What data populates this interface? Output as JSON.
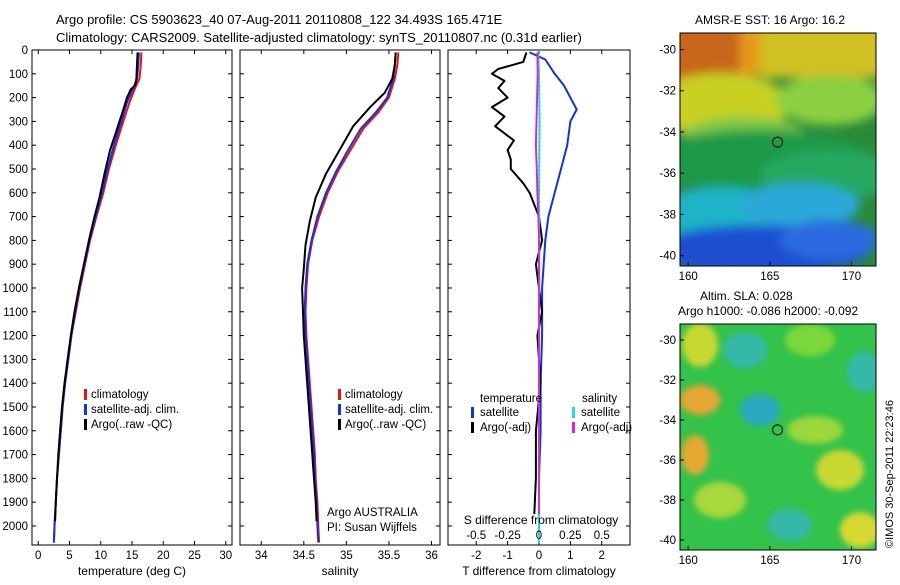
{
  "header": {
    "line1": "Argo profile: CS 5903623_40 07-Aug-2011 20110808_122 34.493S 165.471E",
    "line2": "Climatology: CARS2009. Satellite-adjusted climatology: synTS_20110807.nc (0.31d earlier)"
  },
  "colors": {
    "climatology": "#ee1111",
    "satellite": "#1133dd",
    "argo": "#000000",
    "sal_satellite": "#22dddd",
    "sal_argo": "#dd22dd"
  },
  "chart_data": [
    {
      "id": "temperature",
      "type": "line",
      "xlabel": "temperature (deg C)",
      "ylabel": "",
      "xlim": [
        -1,
        31
      ],
      "ylim": [
        2080,
        0
      ],
      "xticks": [
        0,
        5,
        10,
        15,
        20,
        25,
        30
      ],
      "yticks": [
        0,
        100,
        200,
        300,
        400,
        500,
        600,
        700,
        800,
        900,
        1000,
        1100,
        1200,
        1300,
        1400,
        1500,
        1600,
        1700,
        1800,
        1900,
        2000
      ],
      "legend": [
        "climatology",
        "satellite-adj. clim.",
        "Argo(..raw -QC)"
      ],
      "series": [
        {
          "name": "climatology",
          "color": "#ee1111",
          "points": [
            [
              16.5,
              10
            ],
            [
              16.4,
              60
            ],
            [
              16.2,
              120
            ],
            [
              15.5,
              160
            ],
            [
              14.6,
              220
            ],
            [
              13.6,
              300
            ],
            [
              12.4,
              400
            ],
            [
              11.3,
              500
            ],
            [
              10.4,
              600
            ],
            [
              9.3,
              700
            ],
            [
              8.3,
              800
            ],
            [
              7.5,
              900
            ],
            [
              6.7,
              1000
            ],
            [
              6.0,
              1100
            ],
            [
              5.3,
              1200
            ],
            [
              4.8,
              1300
            ],
            [
              4.3,
              1400
            ],
            [
              3.9,
              1500
            ],
            [
              3.6,
              1600
            ],
            [
              3.3,
              1700
            ],
            [
              3.0,
              1800
            ],
            [
              2.8,
              1900
            ],
            [
              2.6,
              2000
            ],
            [
              2.5,
              2070
            ]
          ]
        },
        {
          "name": "satellite-adj. clim.",
          "color": "#1133dd",
          "points": [
            [
              16.1,
              10
            ],
            [
              16.0,
              60
            ],
            [
              15.8,
              120
            ],
            [
              15.2,
              160
            ],
            [
              14.2,
              220
            ],
            [
              13.3,
              300
            ],
            [
              12.1,
              400
            ],
            [
              11.1,
              500
            ],
            [
              10.2,
              600
            ],
            [
              9.2,
              700
            ],
            [
              8.2,
              800
            ],
            [
              7.4,
              900
            ],
            [
              6.6,
              1000
            ],
            [
              5.9,
              1100
            ],
            [
              5.3,
              1200
            ],
            [
              4.8,
              1300
            ],
            [
              4.3,
              1400
            ],
            [
              3.9,
              1500
            ],
            [
              3.6,
              1600
            ],
            [
              3.3,
              1700
            ],
            [
              3.0,
              1800
            ],
            [
              2.8,
              1900
            ],
            [
              2.6,
              2000
            ],
            [
              2.5,
              2070
            ]
          ]
        },
        {
          "name": "Argo(..raw -QC)",
          "color": "#000000",
          "points": [
            [
              15.9,
              10
            ],
            [
              15.8,
              60
            ],
            [
              15.7,
              120
            ],
            [
              15.5,
              150
            ],
            [
              14.8,
              165
            ],
            [
              14.2,
              200
            ],
            [
              13.5,
              260
            ],
            [
              12.5,
              340
            ],
            [
              11.5,
              420
            ],
            [
              10.6,
              520
            ],
            [
              9.8,
              620
            ],
            [
              9.0,
              700
            ],
            [
              8.1,
              800
            ],
            [
              7.3,
              900
            ],
            [
              6.5,
              1000
            ],
            [
              5.8,
              1100
            ],
            [
              5.2,
              1200
            ],
            [
              4.7,
              1300
            ],
            [
              4.2,
              1400
            ],
            [
              3.8,
              1500
            ],
            [
              3.5,
              1600
            ],
            [
              3.2,
              1700
            ],
            [
              3.0,
              1800
            ],
            [
              2.8,
              1900
            ],
            [
              2.7,
              1980
            ]
          ]
        }
      ]
    },
    {
      "id": "salinity",
      "type": "line",
      "xlabel": "salinity",
      "ylabel": "",
      "xlim": [
        33.75,
        36.1
      ],
      "ylim": [
        2080,
        0
      ],
      "xticks": [
        34,
        34.5,
        35,
        35.5,
        36
      ],
      "yticks": [
        0,
        100,
        200,
        300,
        400,
        500,
        600,
        700,
        800,
        900,
        1000,
        1100,
        1200,
        1300,
        1400,
        1500,
        1600,
        1700,
        1800,
        1900,
        2000
      ],
      "legend": [
        "climatology",
        "satellite-adj. clim.",
        "Argo(..raw -QC)"
      ],
      "series": [
        {
          "name": "climatology",
          "color": "#ee1111",
          "points": [
            [
              35.61,
              10
            ],
            [
              35.6,
              60
            ],
            [
              35.57,
              120
            ],
            [
              35.5,
              200
            ],
            [
              35.38,
              260
            ],
            [
              35.2,
              330
            ],
            [
              35.05,
              420
            ],
            [
              34.9,
              510
            ],
            [
              34.78,
              600
            ],
            [
              34.68,
              700
            ],
            [
              34.6,
              800
            ],
            [
              34.55,
              900
            ],
            [
              34.53,
              1000
            ],
            [
              34.52,
              1100
            ],
            [
              34.53,
              1200
            ],
            [
              34.55,
              1300
            ],
            [
              34.57,
              1400
            ],
            [
              34.59,
              1500
            ],
            [
              34.61,
              1600
            ],
            [
              34.63,
              1700
            ],
            [
              34.64,
              1800
            ],
            [
              34.66,
              1900
            ],
            [
              34.67,
              2000
            ],
            [
              34.68,
              2070
            ]
          ]
        },
        {
          "name": "satellite-adj. clim.",
          "color": "#1133dd",
          "points": [
            [
              35.58,
              10
            ],
            [
              35.57,
              60
            ],
            [
              35.55,
              120
            ],
            [
              35.48,
              200
            ],
            [
              35.35,
              260
            ],
            [
              35.17,
              330
            ],
            [
              35.02,
              420
            ],
            [
              34.88,
              510
            ],
            [
              34.76,
              600
            ],
            [
              34.66,
              700
            ],
            [
              34.59,
              800
            ],
            [
              34.54,
              900
            ],
            [
              34.52,
              1000
            ],
            [
              34.51,
              1100
            ],
            [
              34.52,
              1200
            ],
            [
              34.54,
              1300
            ],
            [
              34.56,
              1400
            ],
            [
              34.58,
              1500
            ],
            [
              34.6,
              1600
            ],
            [
              34.62,
              1700
            ],
            [
              34.63,
              1800
            ],
            [
              34.65,
              1900
            ],
            [
              34.66,
              2000
            ],
            [
              34.67,
              2070
            ]
          ]
        },
        {
          "name": "Argo(..raw -QC)",
          "color": "#000000",
          "points": [
            [
              35.58,
              10
            ],
            [
              35.57,
              60
            ],
            [
              35.54,
              120
            ],
            [
              35.45,
              180
            ],
            [
              35.28,
              240
            ],
            [
              35.08,
              320
            ],
            [
              34.92,
              420
            ],
            [
              34.76,
              520
            ],
            [
              34.64,
              620
            ],
            [
              34.57,
              720
            ],
            [
              34.52,
              820
            ],
            [
              34.5,
              920
            ],
            [
              34.48,
              1000
            ],
            [
              34.49,
              1100
            ],
            [
              34.5,
              1200
            ],
            [
              34.52,
              1300
            ],
            [
              34.54,
              1400
            ],
            [
              34.56,
              1500
            ],
            [
              34.58,
              1600
            ],
            [
              34.6,
              1700
            ],
            [
              34.62,
              1800
            ],
            [
              34.64,
              1900
            ],
            [
              34.65,
              1980
            ]
          ]
        }
      ],
      "annotation": [
        "Argo AUSTRALIA",
        "PI: Susan Wijffels"
      ]
    },
    {
      "id": "difference",
      "type": "line",
      "xlabel": "T difference from climatology",
      "xlabel_top": "S difference from climatology",
      "ylabel": "",
      "xlim": [
        -2.9,
        2.9
      ],
      "ylim": [
        2080,
        0
      ],
      "xticks": [
        -2,
        -1,
        0,
        1,
        2
      ],
      "xticks_top": [
        "-0.5",
        "-0.25",
        "0",
        "0.25",
        "0.5"
      ],
      "yticks": [
        0,
        100,
        200,
        300,
        400,
        500,
        600,
        700,
        800,
        900,
        1000,
        1100,
        1200,
        1300,
        1400,
        1500,
        1600,
        1700,
        1800,
        1900,
        2000
      ],
      "legend_temperature": {
        "title": "temperature",
        "entries": [
          "satellite",
          "Argo(-adj)"
        ]
      },
      "legend_salinity": {
        "title": "salinity",
        "entries": [
          "satellite",
          "Argo(-adj)"
        ]
      },
      "series": [
        {
          "name": "T satellite",
          "color": "#1133dd",
          "points": [
            [
              -0.3,
              10
            ],
            [
              0.2,
              40
            ],
            [
              0.5,
              100
            ],
            [
              0.8,
              150
            ],
            [
              1.0,
              200
            ],
            [
              1.2,
              250
            ],
            [
              1.0,
              300
            ],
            [
              0.9,
              400
            ],
            [
              0.7,
              500
            ],
            [
              0.5,
              600
            ],
            [
              0.3,
              700
            ],
            [
              0.2,
              800
            ],
            [
              0.15,
              900
            ],
            [
              0.1,
              1000
            ],
            [
              0.1,
              1200
            ],
            [
              0.05,
              1400
            ],
            [
              0.05,
              1600
            ],
            [
              0.0,
              1800
            ],
            [
              0.0,
              2070
            ]
          ]
        },
        {
          "name": "T Argo(-adj)",
          "color": "#000000",
          "points": [
            [
              -0.4,
              10
            ],
            [
              -0.5,
              50
            ],
            [
              -1.3,
              80
            ],
            [
              -1.5,
              100
            ],
            [
              -1.1,
              130
            ],
            [
              -1.3,
              160
            ],
            [
              -1.0,
              200
            ],
            [
              -1.5,
              240
            ],
            [
              -1.1,
              280
            ],
            [
              -1.4,
              320
            ],
            [
              -0.8,
              380
            ],
            [
              -1.0,
              420
            ],
            [
              -0.9,
              460
            ],
            [
              -0.9,
              500
            ],
            [
              -0.5,
              560
            ],
            [
              -0.3,
              600
            ],
            [
              0.0,
              700
            ],
            [
              0.1,
              800
            ],
            [
              -0.1,
              900
            ],
            [
              0.0,
              1000
            ],
            [
              0.1,
              1100
            ],
            [
              -0.05,
              1200
            ],
            [
              0.05,
              1400
            ],
            [
              -0.1,
              1600
            ],
            [
              -0.1,
              1800
            ],
            [
              -0.15,
              1950
            ]
          ]
        },
        {
          "name": "S satellite",
          "color": "#22dddd",
          "points": [
            [
              -0.03,
              10
            ],
            [
              0.0,
              100
            ],
            [
              0.02,
              300
            ],
            [
              0.0,
              600
            ],
            [
              0.01,
              900
            ],
            [
              0.0,
              1200
            ],
            [
              0.0,
              1500
            ],
            [
              0.0,
              1800
            ],
            [
              0.0,
              2070
            ]
          ]
        },
        {
          "name": "S Argo(-adj)",
          "color": "#dd22dd",
          "points": [
            [
              -0.05,
              10
            ],
            [
              -0.04,
              100
            ],
            [
              -0.06,
              200
            ],
            [
              -0.08,
              300
            ],
            [
              -0.1,
              400
            ],
            [
              -0.07,
              500
            ],
            [
              -0.05,
              600
            ],
            [
              -0.02,
              700
            ],
            [
              0.0,
              800
            ],
            [
              0.0,
              1000
            ],
            [
              0.0,
              1500
            ],
            [
              0.0,
              1950
            ]
          ]
        }
      ]
    },
    {
      "id": "sst_map",
      "type": "heatmap",
      "title": "AMSR-E SST: 16 Argo: 16.2",
      "xticks": [
        160,
        165,
        170
      ],
      "yticks": [
        -30,
        -32,
        -34,
        -36,
        -38,
        -40
      ],
      "xlim": [
        159.5,
        171.5
      ],
      "ylim": [
        -40.5,
        -29.2
      ],
      "marker": {
        "lon": 165.471,
        "lat": -34.493
      }
    },
    {
      "id": "sla_map",
      "type": "heatmap",
      "title": "Altim. SLA: 0.028",
      "subtitle": "Argo h1000: -0.086 h2000: -0.092",
      "xticks": [
        160,
        165,
        170
      ],
      "yticks": [
        -30,
        -32,
        -34,
        -36,
        -38,
        -40
      ],
      "xlim": [
        159.5,
        171.5
      ],
      "ylim": [
        -40.5,
        -29.2
      ],
      "marker": {
        "lon": 165.471,
        "lat": -34.493
      }
    }
  ],
  "credit": "©IMOS 30-Sep-2011 22:23:46"
}
